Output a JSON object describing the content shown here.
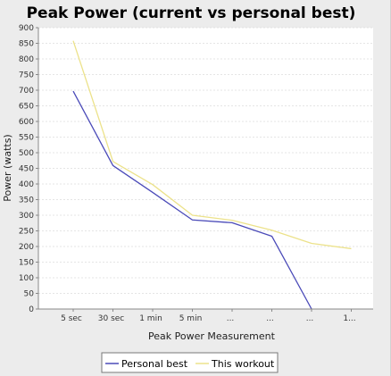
{
  "chart_data": {
    "type": "line",
    "title": "Peak Power (current vs personal best)",
    "xlabel": "Peak Power Measurement",
    "ylabel": "Power (watts)",
    "categories": [
      "5 sec",
      "30 sec",
      "1 min",
      "5 min",
      "...",
      "...",
      "...",
      "1..."
    ],
    "ylim": [
      0,
      900
    ],
    "yticks": [
      0,
      50,
      100,
      150,
      200,
      250,
      300,
      350,
      400,
      450,
      500,
      550,
      600,
      650,
      700,
      750,
      800,
      850,
      900
    ],
    "grid": true,
    "legend_position": "bottom",
    "series": [
      {
        "name": "Personal best",
        "color": "#4a4ab8",
        "values": [
          697,
          459,
          373,
          285,
          276,
          233,
          0,
          null
        ]
      },
      {
        "name": "This workout",
        "color": "#ece28a",
        "values": [
          858,
          472,
          398,
          300,
          284,
          252,
          210,
          193
        ]
      }
    ]
  }
}
